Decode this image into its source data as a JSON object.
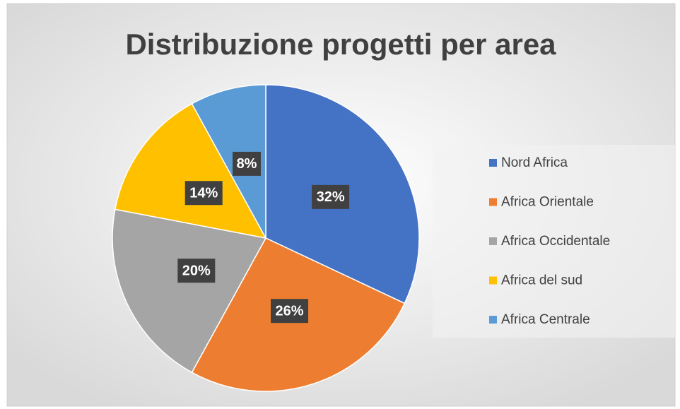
{
  "chart_data": {
    "type": "pie",
    "title": "Distribuzione progetti per area",
    "categories": [
      "Nord Africa",
      "Africa Orientale",
      "Africa Occidentale",
      "Africa del sud",
      "Africa Centrale"
    ],
    "values": [
      32,
      26,
      20,
      14,
      8
    ],
    "value_labels": [
      "32%",
      "26%",
      "20%",
      "14%",
      "8%"
    ],
    "colors": [
      "#4472c4",
      "#ed7d31",
      "#a5a5a5",
      "#ffc000",
      "#5b9bd5"
    ],
    "legend": "right"
  }
}
